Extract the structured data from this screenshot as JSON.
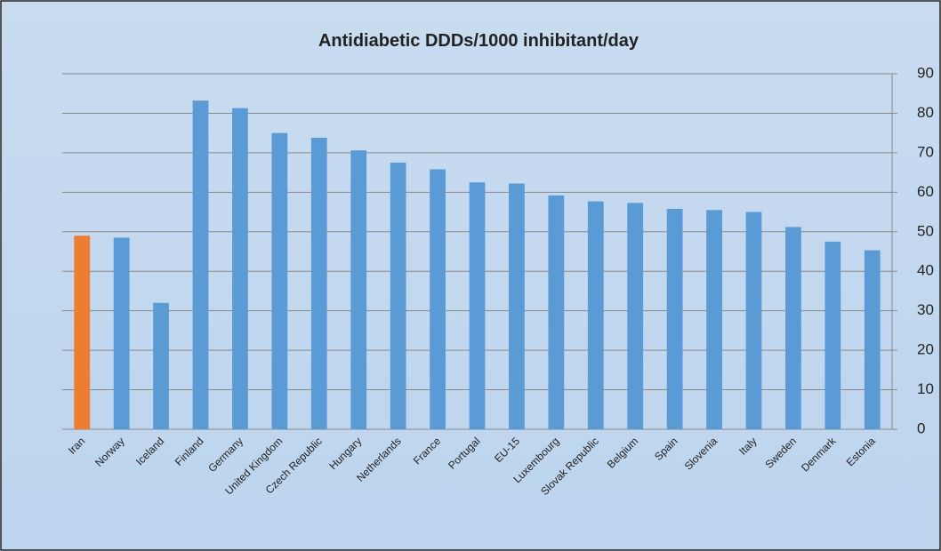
{
  "chart_data": {
    "type": "bar",
    "title": "Antidiabetic DDDs/1000 inhibitant/day",
    "categories": [
      "Iran",
      "Norway",
      "Iceland",
      "Finland",
      "Germany",
      "United Kingdom",
      "Czech Republic",
      "Hungary",
      "Netherlands",
      "France",
      "Portugal",
      "EU-15",
      "Luxembourg",
      "Slovak Republic",
      "Belgium",
      "Spain",
      "Slovenia",
      "Italy",
      "Sweden",
      "Denmark",
      "Estonia"
    ],
    "values": [
      49,
      48.5,
      32,
      83.2,
      81.3,
      75,
      73.8,
      70.6,
      67.5,
      65.8,
      62.5,
      62.2,
      59.2,
      57.7,
      57.3,
      55.8,
      55.5,
      55,
      51.2,
      47.5,
      45.3
    ],
    "colors": [
      "#ed7d31",
      "#5b9bd5",
      "#5b9bd5",
      "#5b9bd5",
      "#5b9bd5",
      "#5b9bd5",
      "#5b9bd5",
      "#5b9bd5",
      "#5b9bd5",
      "#5b9bd5",
      "#5b9bd5",
      "#5b9bd5",
      "#5b9bd5",
      "#5b9bd5",
      "#5b9bd5",
      "#5b9bd5",
      "#5b9bd5",
      "#5b9bd5",
      "#5b9bd5",
      "#5b9bd5",
      "#5b9bd5"
    ],
    "ylim": [
      0,
      90
    ],
    "yticks": [
      0,
      10,
      20,
      30,
      40,
      50,
      60,
      70,
      80,
      90
    ],
    "grid": true,
    "y_axis_side": "right"
  }
}
